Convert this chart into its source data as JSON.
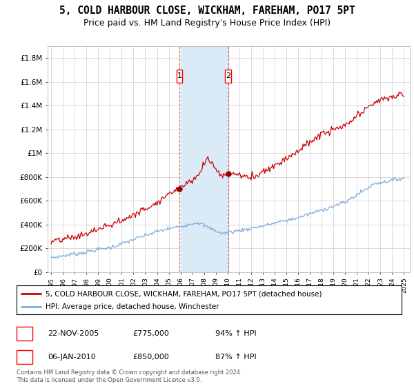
{
  "title": "5, COLD HARBOUR CLOSE, WICKHAM, FAREHAM, PO17 5PT",
  "subtitle": "Price paid vs. HM Land Registry's House Price Index (HPI)",
  "title_fontsize": 10.5,
  "subtitle_fontsize": 9,
  "ylabel_ticks": [
    "£0",
    "£200K",
    "£400K",
    "£600K",
    "£800K",
    "£1M",
    "£1.2M",
    "£1.4M",
    "£1.6M",
    "£1.8M"
  ],
  "ytick_values": [
    0,
    200000,
    400000,
    600000,
    800000,
    1000000,
    1200000,
    1400000,
    1600000,
    1800000
  ],
  "ylim": [
    0,
    1900000
  ],
  "xlim_start": 1994.7,
  "xlim_end": 2025.5,
  "transaction1": {
    "label": "1",
    "date": "22-NOV-2005",
    "price": 775000,
    "hpi_pct": "94% ↑ HPI",
    "x": 2005.9
  },
  "transaction2": {
    "label": "2",
    "date": "06-JAN-2010",
    "price": 850000,
    "hpi_pct": "87% ↑ HPI",
    "x": 2010.05
  },
  "shade_x1_start": 2006.0,
  "shade_x1_end": 2009.75,
  "dashed1_x": 2005.9,
  "dashed2_x": 2010.05,
  "legend_line1": "5, COLD HARBOUR CLOSE, WICKHAM, FAREHAM, PO17 5PT (detached house)",
  "legend_line2": "HPI: Average price, detached house, Winchester",
  "footer": "Contains HM Land Registry data © Crown copyright and database right 2024.\nThis data is licensed under the Open Government Licence v3.0.",
  "red_color": "#cc0000",
  "blue_color": "#7aabdc",
  "shade_color": "#daeaf7",
  "background_color": "#ffffff",
  "grid_color": "#cccccc"
}
